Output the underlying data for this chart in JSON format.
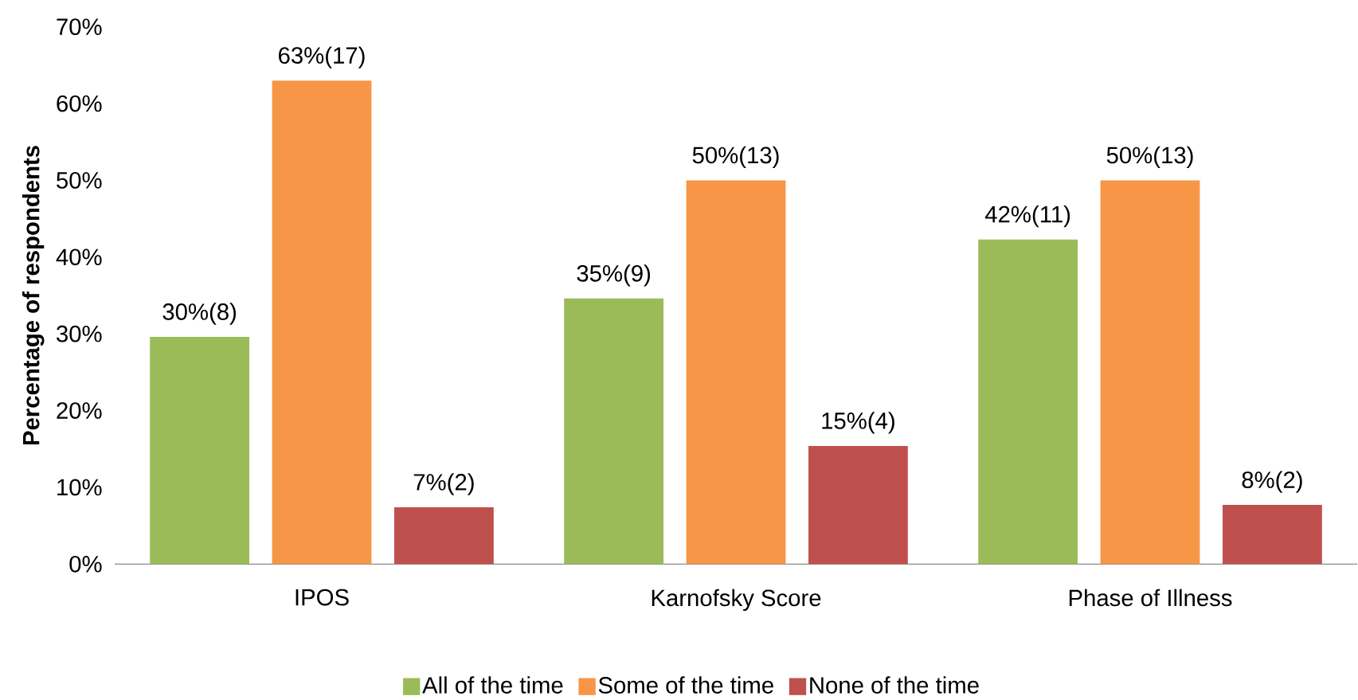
{
  "chart_data": {
    "type": "bar",
    "categories": [
      "IPOS",
      "Karnofsky Score",
      "Phase of Illness"
    ],
    "ylabel": "Percentage of respondents",
    "ylim": [
      0,
      70
    ],
    "yticks": [
      {
        "value": 0,
        "label": "0%"
      },
      {
        "value": 10,
        "label": "10%"
      },
      {
        "value": 20,
        "label": "20%"
      },
      {
        "value": 30,
        "label": "30%"
      },
      {
        "value": 40,
        "label": "40%"
      },
      {
        "value": 50,
        "label": "50%"
      },
      {
        "value": 60,
        "label": "60%"
      },
      {
        "value": 70,
        "label": "70%"
      }
    ],
    "legend": "bottom",
    "series": [
      {
        "name": "All of the time",
        "color": "#9bbb59",
        "values": [
          29.6,
          34.6,
          42.3
        ],
        "value_labels": [
          "30%(8)",
          "35%(9)",
          "42%(11)"
        ]
      },
      {
        "name": "Some of the time",
        "color": "#f79646",
        "values": [
          63.0,
          50.0,
          50.0
        ],
        "value_labels": [
          "63%(17)",
          "50%(13)",
          "50%(13)"
        ]
      },
      {
        "name": "None of the time",
        "color": "#c0504d",
        "values": [
          7.4,
          15.4,
          7.7
        ],
        "value_labels": [
          "7%(2)",
          "15%(4)",
          "8%(2)"
        ]
      }
    ]
  }
}
